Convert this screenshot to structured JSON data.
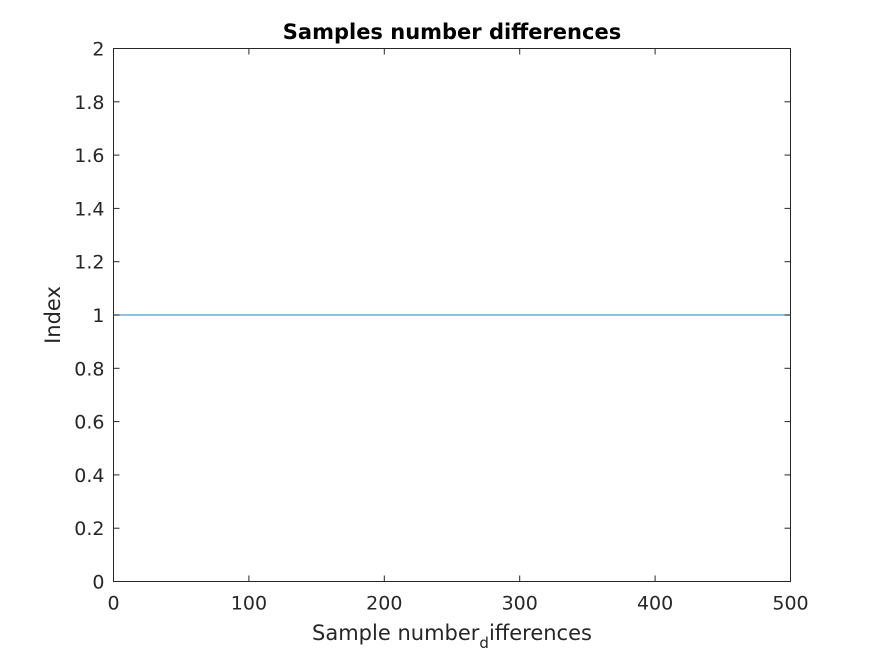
{
  "chart_data": {
    "type": "line",
    "title": "Samples number differences",
    "xlabel": {
      "main": "Sample number",
      "subscript": "d",
      "rest": "ifferences"
    },
    "ylabel": "Index",
    "xlim": [
      0,
      500
    ],
    "ylim": [
      0,
      2
    ],
    "xticks": [
      0,
      100,
      200,
      300,
      400,
      500
    ],
    "xtick_labels": [
      "0",
      "100",
      "200",
      "300",
      "400",
      "500"
    ],
    "yticks": [
      0,
      0.2,
      0.4,
      0.6,
      0.8,
      1,
      1.2,
      1.4,
      1.6,
      1.8,
      2
    ],
    "ytick_labels": [
      "0",
      "0.2",
      "0.4",
      "0.6",
      "0.8",
      "1",
      "1.2",
      "1.4",
      "1.6",
      "1.8",
      "2"
    ],
    "grid": false,
    "box": true,
    "series": [
      {
        "color": "#4a9fd8",
        "x": [
          0,
          500
        ],
        "y": [
          1,
          1
        ]
      }
    ]
  }
}
